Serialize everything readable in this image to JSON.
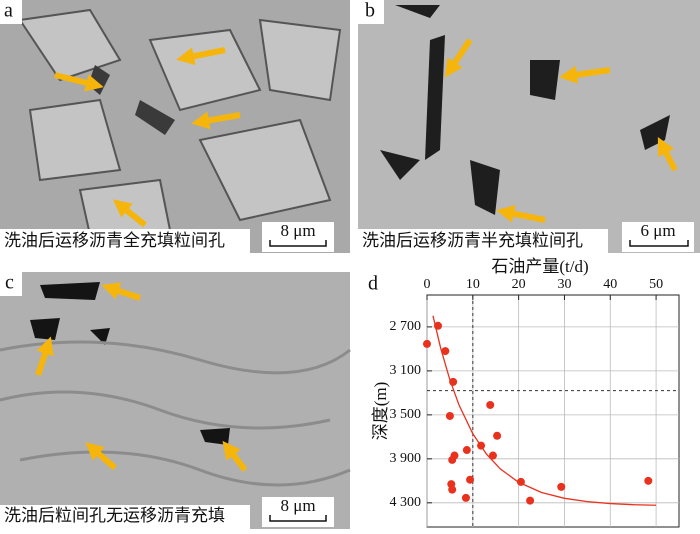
{
  "panels": [
    {
      "label": "a",
      "caption": "洗油后运移沥青全充填粒间孔",
      "scale": "8 μm"
    },
    {
      "label": "b",
      "caption": "洗油后运移沥青半充填粒间孔",
      "scale": "6 μm"
    },
    {
      "label": "c",
      "caption": "洗油后粒间孔无运移沥青充填",
      "scale": "8 μm"
    }
  ],
  "chart_data": {
    "type": "scatter",
    "label": "d",
    "x_label": "石油产量(t/d)",
    "y_label": "深度(m)",
    "xlim": [
      0,
      55
    ],
    "xticks": [
      0,
      10,
      20,
      30,
      40,
      50
    ],
    "ylim": [
      2410,
      4520
    ],
    "y_inverted": true,
    "yticks": [
      {
        "value": 2700,
        "label": "2 700"
      },
      {
        "value": 3100,
        "label": "3 100"
      },
      {
        "value": 3500,
        "label": "3 500"
      },
      {
        "value": 3900,
        "label": "3 900"
      },
      {
        "value": 4300,
        "label": "4 300"
      }
    ],
    "grid": true,
    "ref_x": 10,
    "ref_y": 3280,
    "series": [
      {
        "color": "#e8321e",
        "x": [
          0,
          2.4,
          4,
          5.7,
          5,
          6,
          5.5,
          8.7,
          9.4,
          5.3,
          5.5,
          8.5,
          11.8,
          13.8,
          15.3,
          14.4,
          20.5,
          22.5,
          29.3,
          48.3
        ],
        "values": [
          2855,
          2690,
          2920,
          3200,
          3510,
          3870,
          3910,
          3820,
          4090,
          4130,
          4180,
          4255,
          3780,
          3410,
          3690,
          3870,
          4110,
          4280,
          4155,
          4100
        ]
      },
      {
        "type": "line",
        "color": "#e8321e",
        "x": [
          1.3,
          3,
          5,
          7,
          10,
          13,
          16,
          20,
          25,
          30,
          35,
          40,
          45,
          50
        ],
        "values": [
          2598,
          2896,
          3182,
          3412,
          3672,
          3858,
          3992,
          4113,
          4206,
          4259,
          4289,
          4307,
          4317,
          4322
        ]
      }
    ]
  }
}
